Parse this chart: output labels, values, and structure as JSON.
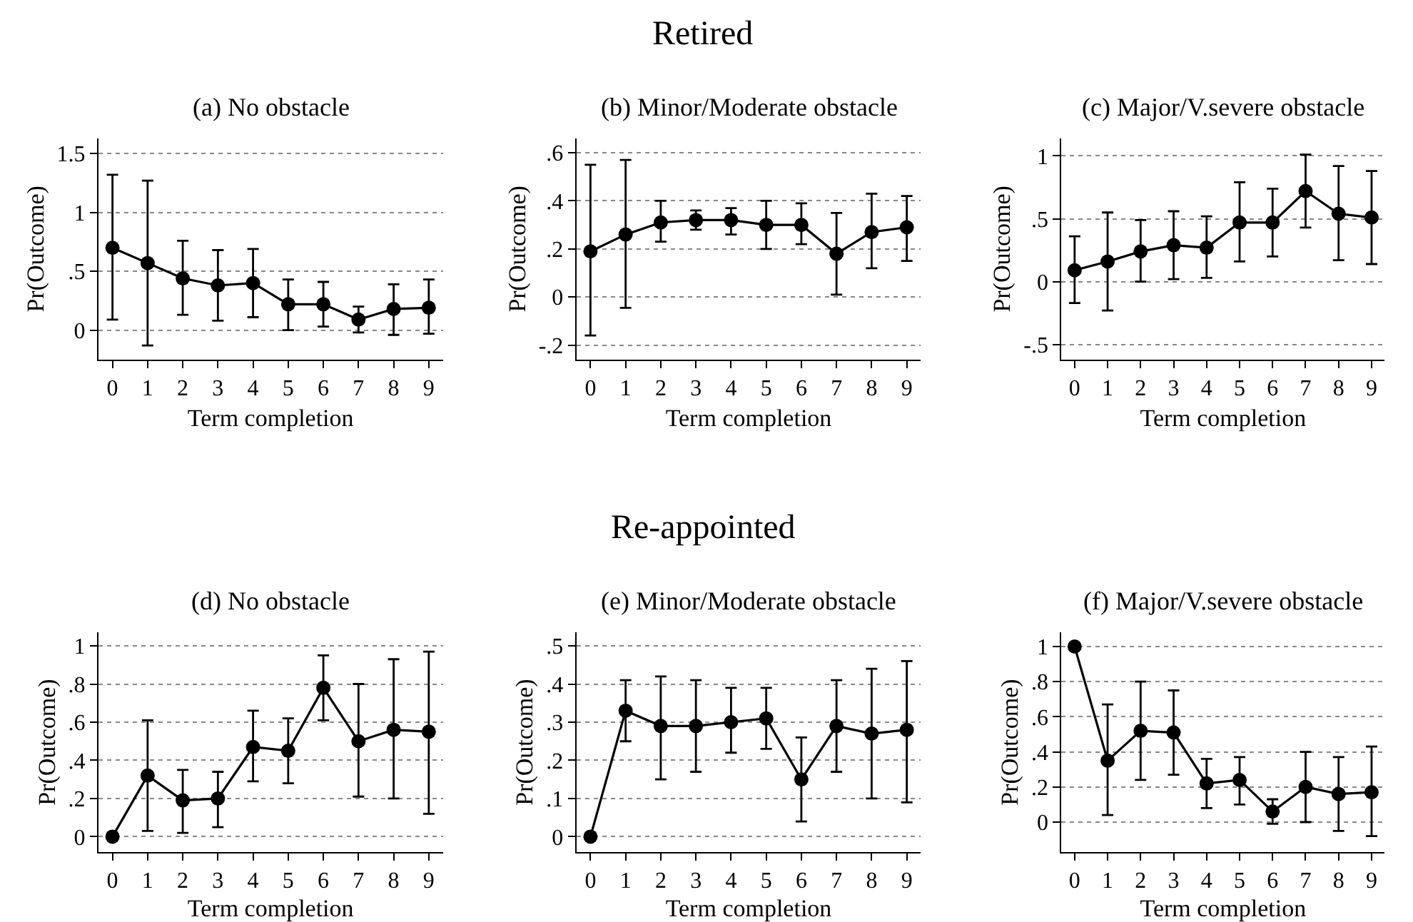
{
  "chart_data": [
    {
      "type": "line",
      "title": "(a) No obstacle",
      "annotations": [
        "Retired"
      ],
      "xlabel": "Term completion",
      "ylabel": "Pr(Outcome)",
      "x": [
        0,
        1,
        2,
        3,
        4,
        5,
        6,
        7,
        8,
        9
      ],
      "xlim": [
        -0.4,
        9.4
      ],
      "xticks": [
        0,
        1,
        2,
        3,
        4,
        5,
        6,
        7,
        8,
        9
      ],
      "ylim": [
        -0.25,
        1.63
      ],
      "yticks": [
        {
          "value": 0,
          "label": "0"
        },
        {
          "value": 0.5,
          "label": ".5"
        },
        {
          "value": 1,
          "label": "1"
        },
        {
          "value": 1.5,
          "label": "1.5"
        }
      ],
      "grid": "y",
      "marker": "circle",
      "line_style": "solid",
      "series": [
        {
          "color": "#000000",
          "values": [
            0.7,
            0.57,
            0.44,
            0.38,
            0.4,
            0.22,
            0.22,
            0.09,
            0.18,
            0.19
          ],
          "errors": [
            [
              0.09,
              1.32
            ],
            [
              -0.13,
              1.27
            ],
            [
              0.13,
              0.76
            ],
            [
              0.08,
              0.68
            ],
            [
              0.11,
              0.69
            ],
            [
              0.0,
              0.43
            ],
            [
              0.03,
              0.41
            ],
            [
              -0.02,
              0.2
            ],
            [
              -0.04,
              0.39
            ],
            [
              -0.03,
              0.43
            ]
          ]
        }
      ]
    },
    {
      "type": "line",
      "title": "(b) Minor/Moderate obstacle",
      "xlabel": "Term completion",
      "ylabel": "Pr(Outcome)",
      "x": [
        0,
        1,
        2,
        3,
        4,
        5,
        6,
        7,
        8,
        9
      ],
      "xlim": [
        -0.4,
        9.4
      ],
      "xticks": [
        0,
        1,
        2,
        3,
        4,
        5,
        6,
        7,
        8,
        9
      ],
      "ylim": [
        -0.26,
        0.66
      ],
      "yticks": [
        {
          "value": -0.2,
          "label": "-.2"
        },
        {
          "value": 0,
          "label": "0"
        },
        {
          "value": 0.2,
          "label": ".2"
        },
        {
          "value": 0.4,
          "label": ".4"
        },
        {
          "value": 0.6,
          "label": ".6"
        }
      ],
      "grid": "y",
      "marker": "circle",
      "line_style": "solid",
      "series": [
        {
          "color": "#000000",
          "values": [
            0.19,
            0.26,
            0.31,
            0.32,
            0.32,
            0.3,
            0.3,
            0.18,
            0.27,
            0.29
          ],
          "errors": [
            [
              -0.16,
              0.55
            ],
            [
              -0.045,
              0.57
            ],
            [
              0.23,
              0.4
            ],
            [
              0.28,
              0.36
            ],
            [
              0.26,
              0.37
            ],
            [
              0.2,
              0.4
            ],
            [
              0.22,
              0.39
            ],
            [
              0.01,
              0.35
            ],
            [
              0.12,
              0.43
            ],
            [
              0.15,
              0.42
            ]
          ]
        }
      ]
    },
    {
      "type": "line",
      "title": "(c) Major/V.severe obstacle",
      "xlabel": "Term completion",
      "ylabel": "Pr(Outcome)",
      "x": [
        0,
        1,
        2,
        3,
        4,
        5,
        6,
        7,
        8,
        9
      ],
      "xlim": [
        -0.4,
        9.4
      ],
      "xticks": [
        0,
        1,
        2,
        3,
        4,
        5,
        6,
        7,
        8,
        9
      ],
      "ylim": [
        -0.62,
        1.14
      ],
      "yticks": [
        {
          "value": -0.5,
          "label": "-.5"
        },
        {
          "value": 0,
          "label": "0"
        },
        {
          "value": 0.5,
          "label": ".5"
        },
        {
          "value": 1,
          "label": "1"
        }
      ],
      "grid": "y",
      "marker": "circle",
      "line_style": "solid",
      "series": [
        {
          "color": "#000000",
          "values": [
            0.09,
            0.16,
            0.24,
            0.29,
            0.27,
            0.47,
            0.47,
            0.72,
            0.54,
            0.51
          ],
          "errors": [
            [
              -0.17,
              0.36
            ],
            [
              -0.23,
              0.55
            ],
            [
              0.0,
              0.49
            ],
            [
              0.02,
              0.56
            ],
            [
              0.03,
              0.52
            ],
            [
              0.16,
              0.79
            ],
            [
              0.2,
              0.74
            ],
            [
              0.43,
              1.01
            ],
            [
              0.17,
              0.92
            ],
            [
              0.14,
              0.88
            ]
          ]
        }
      ]
    },
    {
      "type": "line",
      "title": "(d) No obstacle",
      "annotations": [
        "Re-appointed"
      ],
      "xlabel": "Term completion",
      "ylabel": "Pr(Outcome)",
      "x": [
        0,
        1,
        2,
        3,
        4,
        5,
        6,
        7,
        8,
        9
      ],
      "xlim": [
        -0.4,
        9.4
      ],
      "xticks": [
        0,
        1,
        2,
        3,
        4,
        5,
        6,
        7,
        8,
        9
      ],
      "ylim": [
        -0.08,
        1.07
      ],
      "yticks": [
        {
          "value": 0,
          "label": "0"
        },
        {
          "value": 0.2,
          "label": ".2"
        },
        {
          "value": 0.4,
          "label": ".4"
        },
        {
          "value": 0.6,
          "label": ".6"
        },
        {
          "value": 0.8,
          "label": ".8"
        },
        {
          "value": 1,
          "label": "1"
        }
      ],
      "grid": "y",
      "marker": "circle",
      "line_style": "solid",
      "series": [
        {
          "color": "#000000",
          "values": [
            0,
            0.32,
            0.19,
            0.2,
            0.47,
            0.45,
            0.78,
            0.5,
            0.56,
            0.55
          ],
          "errors": [
            null,
            [
              0.03,
              0.61
            ],
            [
              0.02,
              0.35
            ],
            [
              0.05,
              0.34
            ],
            [
              0.29,
              0.66
            ],
            [
              0.28,
              0.62
            ],
            [
              0.61,
              0.95
            ],
            [
              0.21,
              0.8
            ],
            [
              0.2,
              0.93
            ],
            [
              0.12,
              0.97
            ]
          ]
        }
      ]
    },
    {
      "type": "line",
      "title": "(e) Minor/Moderate obstacle",
      "xlabel": "Term completion",
      "ylabel": "Pr(Outcome)",
      "x": [
        0,
        1,
        2,
        3,
        4,
        5,
        6,
        7,
        8,
        9
      ],
      "xlim": [
        -0.4,
        9.4
      ],
      "xticks": [
        0,
        1,
        2,
        3,
        4,
        5,
        6,
        7,
        8,
        9
      ],
      "ylim": [
        -0.04,
        0.535
      ],
      "yticks": [
        {
          "value": 0,
          "label": "0"
        },
        {
          "value": 0.1,
          "label": ".1"
        },
        {
          "value": 0.2,
          "label": ".2"
        },
        {
          "value": 0.3,
          "label": ".3"
        },
        {
          "value": 0.4,
          "label": ".4"
        },
        {
          "value": 0.5,
          "label": ".5"
        }
      ],
      "grid": "y",
      "marker": "circle",
      "line_style": "solid",
      "series": [
        {
          "color": "#000000",
          "values": [
            0,
            0.33,
            0.29,
            0.29,
            0.3,
            0.31,
            0.15,
            0.29,
            0.27,
            0.28
          ],
          "errors": [
            null,
            [
              0.25,
              0.41
            ],
            [
              0.15,
              0.42
            ],
            [
              0.17,
              0.41
            ],
            [
              0.22,
              0.39
            ],
            [
              0.23,
              0.39
            ],
            [
              0.04,
              0.26
            ],
            [
              0.17,
              0.41
            ],
            [
              0.1,
              0.44
            ],
            [
              0.09,
              0.46
            ]
          ]
        }
      ]
    },
    {
      "type": "line",
      "title": "(f) Major/V.severe obstacle",
      "xlabel": "Term completion",
      "ylabel": "Pr(Outcome)",
      "x": [
        0,
        1,
        2,
        3,
        4,
        5,
        6,
        7,
        8,
        9
      ],
      "xlim": [
        -0.4,
        9.4
      ],
      "xticks": [
        0,
        1,
        2,
        3,
        4,
        5,
        6,
        7,
        8,
        9
      ],
      "ylim": [
        -0.17,
        1.08
      ],
      "yticks": [
        {
          "value": 0,
          "label": "0"
        },
        {
          "value": 0.2,
          "label": ".2"
        },
        {
          "value": 0.4,
          "label": ".4"
        },
        {
          "value": 0.6,
          "label": ".6"
        },
        {
          "value": 0.8,
          "label": ".8"
        },
        {
          "value": 1,
          "label": "1"
        }
      ],
      "grid": "y",
      "marker": "circle",
      "line_style": "solid",
      "series": [
        {
          "color": "#000000",
          "values": [
            1.0,
            0.35,
            0.52,
            0.51,
            0.22,
            0.24,
            0.06,
            0.2,
            0.16,
            0.17
          ],
          "errors": [
            null,
            [
              0.04,
              0.67
            ],
            [
              0.24,
              0.8
            ],
            [
              0.27,
              0.75
            ],
            [
              0.08,
              0.36
            ],
            [
              0.1,
              0.37
            ],
            [
              -0.01,
              0.13
            ],
            [
              0.0,
              0.4
            ],
            [
              -0.05,
              0.37
            ],
            [
              -0.08,
              0.43
            ]
          ]
        }
      ]
    }
  ]
}
